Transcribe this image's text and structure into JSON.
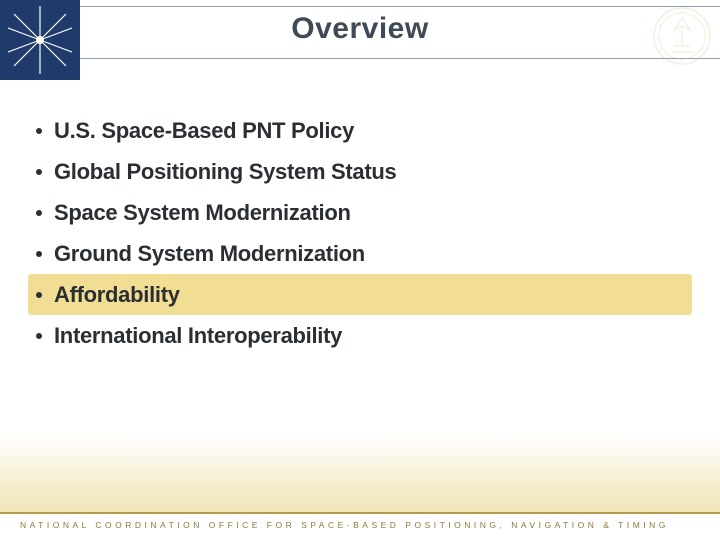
{
  "colors": {
    "title": "#3f4a56",
    "bullet_text": "#2b2f33",
    "bullet_dot": "#2b2f33",
    "highlight_bg": "#f2dd94",
    "logo_bg": "#1f3a6b",
    "logo_star": "#ffffff",
    "seal": "#d9c48a",
    "footer_line": "#b89a4a",
    "footer_text": "#8a7a3a"
  },
  "title": "Overview",
  "bullets": [
    {
      "text": "U.S. Space-Based PNT Policy",
      "highlighted": false
    },
    {
      "text": "Global Positioning System Status",
      "highlighted": false
    },
    {
      "text": "Space System Modernization",
      "highlighted": false
    },
    {
      "text": "Ground System Modernization",
      "highlighted": false
    },
    {
      "text": "Affordability",
      "highlighted": true
    },
    {
      "text": "International Interoperability",
      "highlighted": false
    }
  ],
  "footer": "NATIONAL COORDINATION OFFICE FOR SPACE-BASED POSITIONING, NAVIGATION & TIMING"
}
